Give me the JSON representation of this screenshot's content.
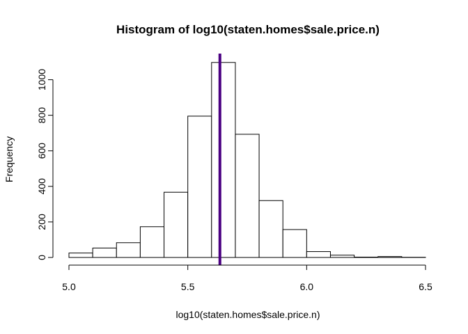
{
  "chart_data": {
    "type": "bar",
    "title": "Histogram of log10(staten.homes$sale.price.n)",
    "xlabel": "log10(staten.homes$sale.price.n)",
    "ylabel": "Frequency",
    "bins": [
      {
        "start": 5.0,
        "end": 5.1,
        "count": 25
      },
      {
        "start": 5.1,
        "end": 5.2,
        "count": 53
      },
      {
        "start": 5.2,
        "end": 5.3,
        "count": 83
      },
      {
        "start": 5.3,
        "end": 5.4,
        "count": 173
      },
      {
        "start": 5.4,
        "end": 5.5,
        "count": 367
      },
      {
        "start": 5.5,
        "end": 5.6,
        "count": 795
      },
      {
        "start": 5.6,
        "end": 5.7,
        "count": 1097
      },
      {
        "start": 5.7,
        "end": 5.8,
        "count": 693
      },
      {
        "start": 5.8,
        "end": 5.9,
        "count": 320
      },
      {
        "start": 5.9,
        "end": 6.0,
        "count": 157
      },
      {
        "start": 6.0,
        "end": 6.1,
        "count": 33
      },
      {
        "start": 6.1,
        "end": 6.2,
        "count": 13
      },
      {
        "start": 6.2,
        "end": 6.3,
        "count": 2
      },
      {
        "start": 6.3,
        "end": 6.4,
        "count": 5
      },
      {
        "start": 6.4,
        "end": 6.5,
        "count": 1
      }
    ],
    "xlim": [
      5.0,
      6.5
    ],
    "ylim": [
      0,
      1100
    ],
    "x_ticks": [
      5.0,
      5.5,
      6.0,
      6.5
    ],
    "x_tick_labels": [
      "5.0",
      "5.5",
      "6.0",
      "6.5"
    ],
    "y_ticks": [
      0,
      200,
      400,
      600,
      800,
      1000
    ],
    "y_tick_labels": [
      "0",
      "200",
      "400",
      "600",
      "800",
      "1000"
    ],
    "grid": false,
    "vertical_line": {
      "x": 5.635,
      "color": "#4B0082"
    }
  }
}
